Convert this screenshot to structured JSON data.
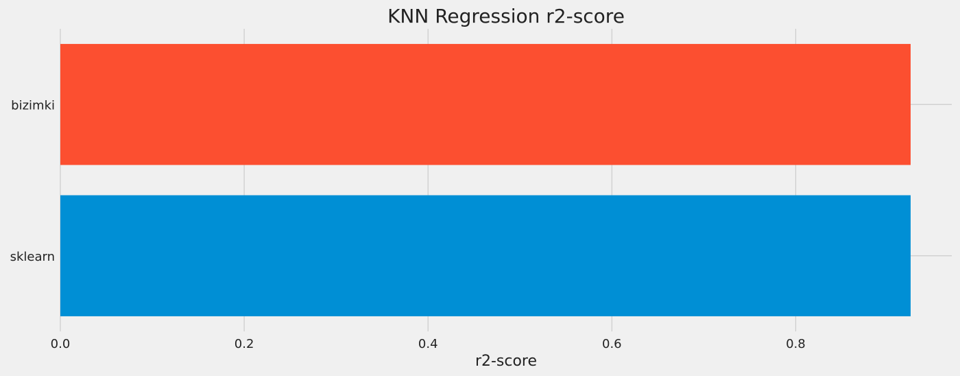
{
  "chart_data": {
    "type": "bar",
    "orientation": "horizontal",
    "title": "KNN Regression r2-score",
    "xlabel": "r2-score",
    "ylabel": "",
    "categories": [
      "bizimki",
      "sklearn"
    ],
    "values": [
      0.925,
      0.925
    ],
    "colors": [
      "#fc4f30",
      "#008fd5"
    ],
    "xlim": [
      0.0,
      0.925
    ],
    "xticks": [
      "0.0",
      "0.2",
      "0.4",
      "0.6",
      "0.8"
    ],
    "grid": true,
    "legend": "none"
  },
  "style": {
    "background": "#f0f0f0",
    "grid_color": "#cbcbcb",
    "text_color": "#222222"
  }
}
